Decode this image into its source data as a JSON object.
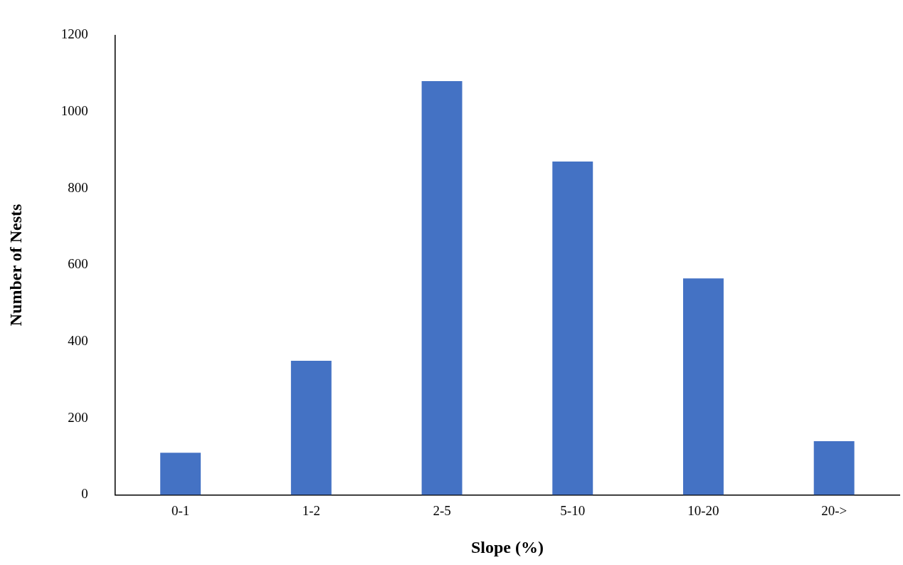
{
  "chart_data": {
    "type": "bar",
    "xlabel": "Slope (%)",
    "ylabel": "Number of Nests",
    "categories": [
      "0-1",
      "1-2",
      "2-5",
      "5-10",
      "10-20",
      "20->"
    ],
    "values": [
      110,
      350,
      1080,
      870,
      565,
      140
    ],
    "color": "#4472c4",
    "ylim": [
      0,
      1200
    ],
    "yticks": [
      0,
      200,
      400,
      600,
      800,
      1000,
      1200
    ],
    "grid": false,
    "legend": false
  }
}
